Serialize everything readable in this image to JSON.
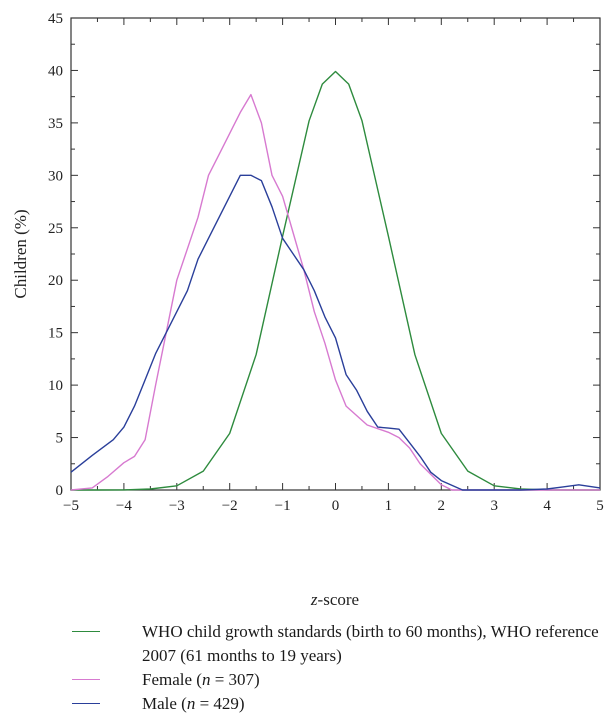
{
  "chart_data": {
    "type": "line",
    "xlabel_prefix": "z",
    "xlabel_suffix": "-score",
    "ylabel": "Children (%)",
    "xlim": [
      -5,
      5
    ],
    "ylim": [
      0,
      45
    ],
    "xticks": [
      -5,
      -4,
      -3,
      -2,
      -1,
      0,
      1,
      2,
      3,
      4,
      5
    ],
    "yticks": [
      0,
      5,
      10,
      15,
      20,
      25,
      30,
      35,
      40,
      45
    ],
    "xtick_labels": [
      "−5",
      "−4",
      "−3",
      "−2",
      "−1",
      "0",
      "1",
      "2",
      "3",
      "4",
      "5"
    ],
    "ytick_labels": [
      "0",
      "5",
      "10",
      "15",
      "20",
      "25",
      "30",
      "35",
      "40",
      "45"
    ],
    "grid": false,
    "legend_position": "bottom",
    "series": [
      {
        "name": "WHO child growth standards (birth to 60 months), WHO reference 2007 (61 months to 19 years)",
        "color": "#2e8b3e",
        "x": [
          -5,
          -4.5,
          -4,
          -3.5,
          -3,
          -2.5,
          -2,
          -1.5,
          -1,
          -0.5,
          -0.25,
          0,
          0.25,
          0.5,
          1,
          1.5,
          2,
          2.5,
          3,
          3.5,
          4,
          4.5,
          5
        ],
        "y": [
          0,
          0,
          0.01,
          0.1,
          0.4,
          1.8,
          5.4,
          12.9,
          24.2,
          35.2,
          38.7,
          39.9,
          38.7,
          35.2,
          24.2,
          12.9,
          5.4,
          1.8,
          0.4,
          0.1,
          0.01,
          0,
          0
        ]
      },
      {
        "name": "Female",
        "n": "307",
        "color": "#d77ad0",
        "x": [
          -5,
          -4.6,
          -4.3,
          -4,
          -3.8,
          -3.6,
          -3.4,
          -3.2,
          -3,
          -2.8,
          -2.6,
          -2.4,
          -2.2,
          -2,
          -1.8,
          -1.6,
          -1.4,
          -1.2,
          -1,
          -0.8,
          -0.6,
          -0.4,
          -0.2,
          0,
          0.2,
          0.6,
          1,
          1.2,
          1.4,
          1.6,
          2,
          2.2,
          2.4,
          3,
          4,
          5
        ],
        "y": [
          0,
          0.2,
          1.3,
          2.6,
          3.2,
          4.8,
          10,
          15,
          20,
          23,
          26,
          30,
          32,
          34,
          36,
          37.7,
          35,
          30,
          28,
          24.5,
          21,
          17,
          14,
          10.5,
          8,
          6.2,
          5.5,
          5,
          4,
          2.5,
          0.5,
          0,
          0,
          0,
          0,
          0
        ]
      },
      {
        "name": "Male",
        "n": "429",
        "color": "#2a3f9a",
        "x": [
          -5,
          -4.6,
          -4.2,
          -4,
          -3.8,
          -3.6,
          -3.4,
          -3.2,
          -3,
          -2.8,
          -2.6,
          -2.4,
          -2.2,
          -2,
          -1.8,
          -1.6,
          -1.4,
          -1.2,
          -1,
          -0.8,
          -0.6,
          -0.4,
          -0.2,
          0,
          0.2,
          0.4,
          0.6,
          0.8,
          1,
          1.2,
          1.4,
          1.6,
          1.8,
          2,
          2.4,
          3,
          3.5,
          4,
          4.3,
          4.6,
          5
        ],
        "y": [
          1.7,
          3.3,
          4.8,
          6,
          8,
          10.5,
          13,
          15,
          17,
          19,
          22,
          24,
          26,
          28,
          30,
          30,
          29.5,
          27,
          24,
          22.5,
          21,
          19,
          16.5,
          14.5,
          11,
          9.5,
          7.5,
          6,
          5.9,
          5.8,
          4.5,
          3.2,
          1.7,
          0.9,
          0,
          0,
          0,
          0.1,
          0.3,
          0.5,
          0.2
        ]
      }
    ]
  },
  "legend": [
    {
      "label": "WHO child growth standards (birth to 60 months), WHO reference 2007 (61 months to 19 years)",
      "n": "",
      "color": "#2e8b3e"
    },
    {
      "label": "Female (",
      "n_var": "n",
      "n": " = 307)",
      "color": "#d77ad0"
    },
    {
      "label": "Male (",
      "n_var": "n",
      "n": " = 429)",
      "color": "#2a3f9a"
    }
  ]
}
